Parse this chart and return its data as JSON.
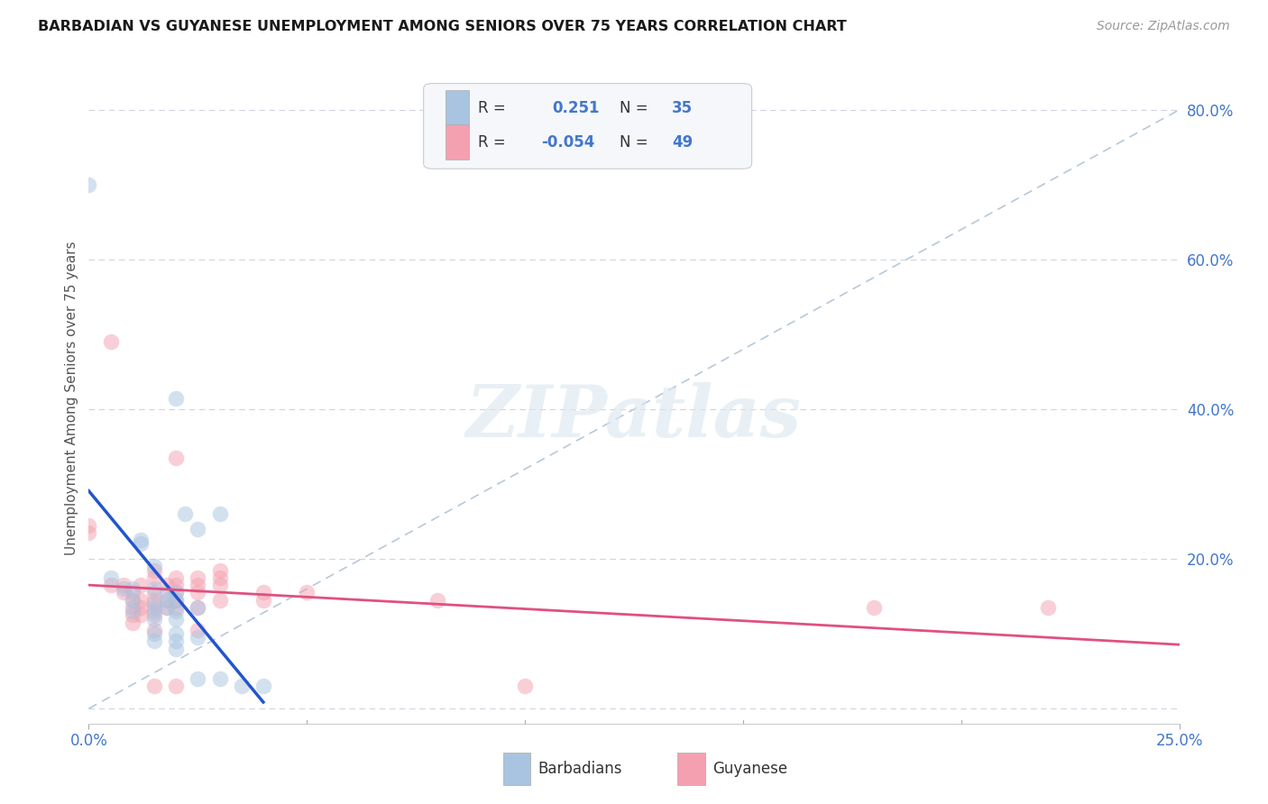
{
  "title": "BARBADIAN VS GUYANESE UNEMPLOYMENT AMONG SENIORS OVER 75 YEARS CORRELATION CHART",
  "source": "Source: ZipAtlas.com",
  "ylabel": "Unemployment Among Seniors over 75 years",
  "xlim": [
    0.0,
    0.25
  ],
  "ylim": [
    -0.02,
    0.85
  ],
  "barbadian_color": "#a8c4e0",
  "guyanese_color": "#f4a0b0",
  "barbadian_line_color": "#2255cc",
  "guyanese_line_color": "#e05080",
  "diagonal_color": "#b8c8d8",
  "R_barbadian": 0.251,
  "N_barbadian": 35,
  "R_guyanese": -0.054,
  "N_guyanese": 49,
  "barbadian_points": [
    [
      0.0,
      0.7
    ],
    [
      0.005,
      0.175
    ],
    [
      0.008,
      0.16
    ],
    [
      0.01,
      0.16
    ],
    [
      0.01,
      0.145
    ],
    [
      0.01,
      0.13
    ],
    [
      0.012,
      0.225
    ],
    [
      0.012,
      0.22
    ],
    [
      0.015,
      0.19
    ],
    [
      0.015,
      0.16
    ],
    [
      0.015,
      0.14
    ],
    [
      0.015,
      0.13
    ],
    [
      0.015,
      0.12
    ],
    [
      0.015,
      0.1
    ],
    [
      0.015,
      0.09
    ],
    [
      0.018,
      0.155
    ],
    [
      0.018,
      0.145
    ],
    [
      0.018,
      0.135
    ],
    [
      0.02,
      0.415
    ],
    [
      0.02,
      0.155
    ],
    [
      0.02,
      0.145
    ],
    [
      0.02,
      0.13
    ],
    [
      0.02,
      0.12
    ],
    [
      0.02,
      0.1
    ],
    [
      0.02,
      0.09
    ],
    [
      0.02,
      0.08
    ],
    [
      0.022,
      0.26
    ],
    [
      0.025,
      0.24
    ],
    [
      0.025,
      0.135
    ],
    [
      0.025,
      0.095
    ],
    [
      0.025,
      0.04
    ],
    [
      0.03,
      0.26
    ],
    [
      0.03,
      0.04
    ],
    [
      0.035,
      0.03
    ],
    [
      0.04,
      0.03
    ]
  ],
  "guyanese_points": [
    [
      0.0,
      0.245
    ],
    [
      0.0,
      0.235
    ],
    [
      0.005,
      0.49
    ],
    [
      0.005,
      0.165
    ],
    [
      0.008,
      0.165
    ],
    [
      0.008,
      0.155
    ],
    [
      0.01,
      0.155
    ],
    [
      0.01,
      0.145
    ],
    [
      0.01,
      0.135
    ],
    [
      0.01,
      0.125
    ],
    [
      0.01,
      0.115
    ],
    [
      0.012,
      0.165
    ],
    [
      0.012,
      0.145
    ],
    [
      0.012,
      0.135
    ],
    [
      0.012,
      0.125
    ],
    [
      0.015,
      0.185
    ],
    [
      0.015,
      0.175
    ],
    [
      0.015,
      0.155
    ],
    [
      0.015,
      0.145
    ],
    [
      0.015,
      0.135
    ],
    [
      0.015,
      0.125
    ],
    [
      0.015,
      0.105
    ],
    [
      0.015,
      0.03
    ],
    [
      0.018,
      0.165
    ],
    [
      0.018,
      0.145
    ],
    [
      0.018,
      0.135
    ],
    [
      0.02,
      0.335
    ],
    [
      0.02,
      0.175
    ],
    [
      0.02,
      0.165
    ],
    [
      0.02,
      0.155
    ],
    [
      0.02,
      0.145
    ],
    [
      0.02,
      0.135
    ],
    [
      0.02,
      0.03
    ],
    [
      0.025,
      0.175
    ],
    [
      0.025,
      0.165
    ],
    [
      0.025,
      0.155
    ],
    [
      0.025,
      0.135
    ],
    [
      0.025,
      0.105
    ],
    [
      0.03,
      0.185
    ],
    [
      0.03,
      0.175
    ],
    [
      0.03,
      0.165
    ],
    [
      0.03,
      0.145
    ],
    [
      0.04,
      0.155
    ],
    [
      0.04,
      0.145
    ],
    [
      0.05,
      0.155
    ],
    [
      0.08,
      0.145
    ],
    [
      0.1,
      0.03
    ],
    [
      0.18,
      0.135
    ],
    [
      0.22,
      0.135
    ]
  ],
  "watermark": "ZIPatlas",
  "background_color": "#ffffff",
  "grid_color": "#d0d4e0",
  "tick_color": "#4477cc"
}
